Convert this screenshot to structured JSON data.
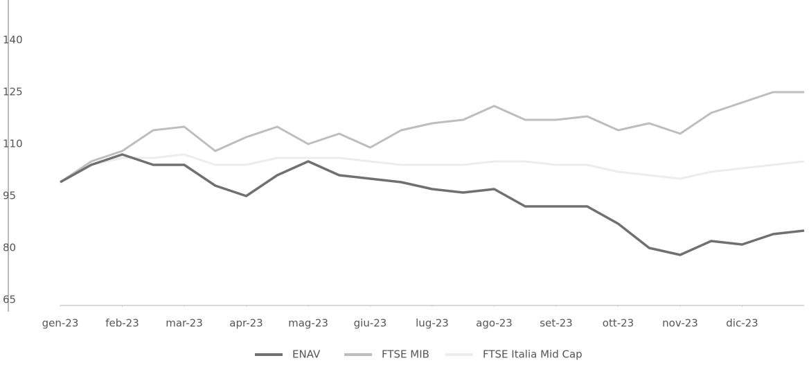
{
  "chart_data": {
    "type": "line",
    "x": [
      0,
      0.5,
      1,
      1.5,
      2,
      2.5,
      3,
      3.5,
      4,
      4.5,
      5,
      5.5,
      6,
      6.5,
      7,
      7.5,
      8,
      8.5,
      9,
      9.5,
      10,
      10.5,
      11,
      11.5,
      12
    ],
    "series": [
      {
        "name": "ENAV",
        "color": "#707070",
        "values": [
          99,
          104,
          107,
          104,
          104,
          98,
          95,
          101,
          105,
          101,
          100,
          99,
          97,
          96,
          97,
          92,
          92,
          92,
          87,
          80,
          78,
          82,
          81,
          84,
          85
        ]
      },
      {
        "name": "FTSE MIB",
        "color": "#bdbdbd",
        "values": [
          99,
          105,
          108,
          114,
          115,
          108,
          112,
          115,
          110,
          113,
          109,
          114,
          116,
          117,
          121,
          117,
          117,
          118,
          114,
          116,
          113,
          119,
          122,
          125,
          125
        ]
      },
      {
        "name": "FTSE Italia Mid Cap",
        "color": "#ececec",
        "values": [
          99,
          104,
          106,
          106,
          107,
          104,
          104,
          106,
          106,
          106,
          105,
          104,
          104,
          104,
          105,
          105,
          104,
          104,
          102,
          101,
          100,
          102,
          103,
          104,
          105
        ]
      }
    ],
    "xlim": [
      0,
      12
    ],
    "xticks": [
      {
        "value": 0,
        "label": "gen-23"
      },
      {
        "value": 1,
        "label": "feb-23"
      },
      {
        "value": 2,
        "label": "mar-23"
      },
      {
        "value": 3,
        "label": "apr-23"
      },
      {
        "value": 4,
        "label": "mag-23"
      },
      {
        "value": 5,
        "label": "giu-23"
      },
      {
        "value": 6,
        "label": "lug-23"
      },
      {
        "value": 7,
        "label": "ago-23"
      },
      {
        "value": 8,
        "label": "set-23"
      },
      {
        "value": 9,
        "label": "ott-23"
      },
      {
        "value": 10,
        "label": "nov-23"
      },
      {
        "value": 11,
        "label": "dic-23"
      }
    ],
    "ylim": [
      64,
      150
    ],
    "yticks": [
      65,
      80,
      95,
      110,
      125,
      140
    ],
    "legend": "bottom"
  }
}
